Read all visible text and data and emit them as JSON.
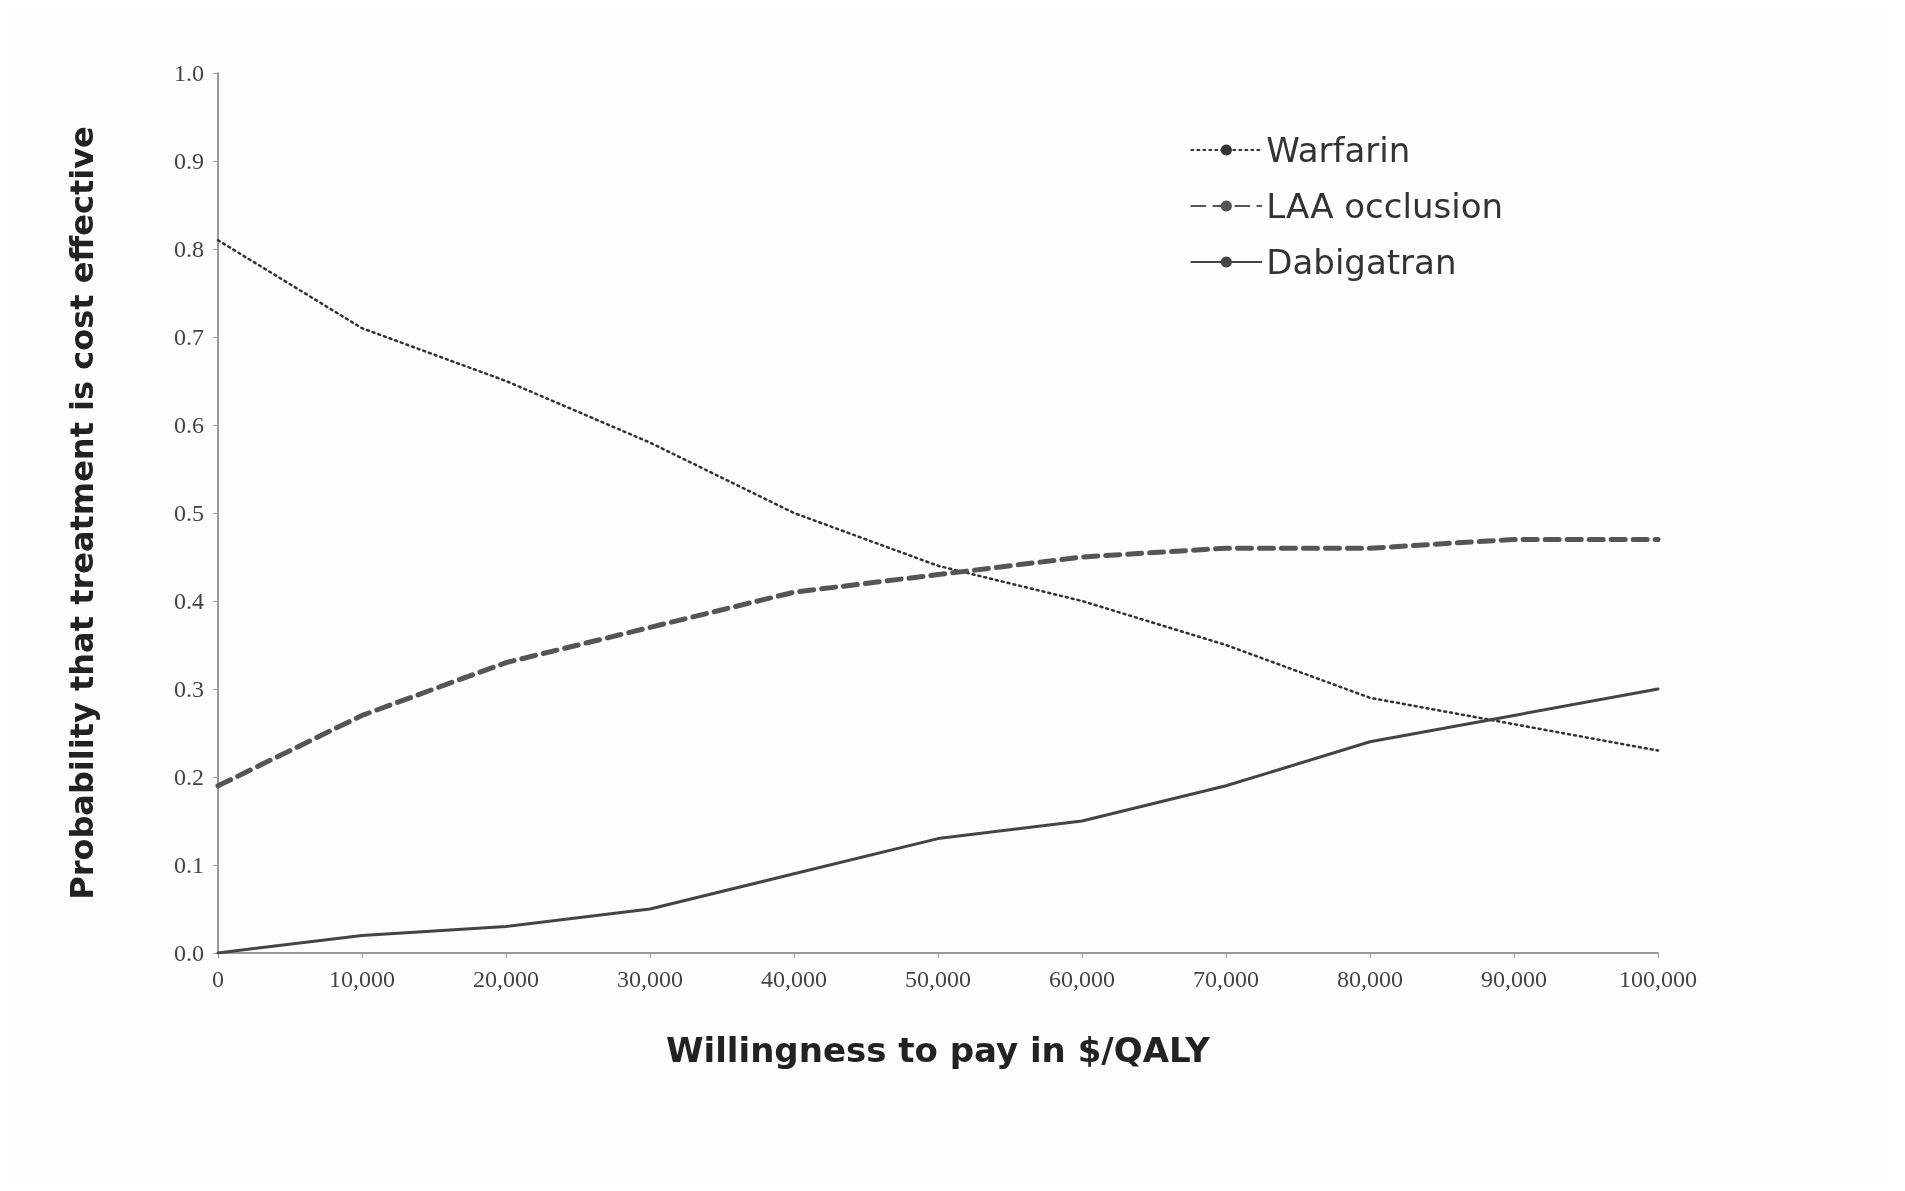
{
  "chart_data": {
    "type": "line",
    "xlabel": "Willingness to pay in $/QALY",
    "ylabel": "Probability that treatment is cost effective",
    "x": [
      0,
      10000,
      20000,
      30000,
      40000,
      50000,
      60000,
      70000,
      80000,
      90000,
      100000
    ],
    "series": [
      {
        "name": "Warfarin",
        "color": "#333333",
        "line_style": "dotted",
        "values": [
          0.81,
          0.71,
          0.65,
          0.58,
          0.5,
          0.44,
          0.4,
          0.35,
          0.29,
          0.26,
          0.23
        ]
      },
      {
        "name": "LAA occlusion",
        "color": "#555555",
        "line_style": "dashed",
        "values": [
          0.19,
          0.27,
          0.33,
          0.37,
          0.41,
          0.43,
          0.45,
          0.46,
          0.46,
          0.47,
          0.47
        ]
      },
      {
        "name": "Dabigatran",
        "color": "#444444",
        "line_style": "solid",
        "values": [
          0,
          0.02,
          0.03,
          0.05,
          0.09,
          0.13,
          0.15,
          0.19,
          0.24,
          0.27,
          0.3
        ]
      }
    ],
    "xlim": [
      0,
      100000
    ],
    "xticks": [
      0,
      {
        "value": 10000,
        "label": "10,000"
      },
      {
        "value": 20000,
        "label": "20,000"
      },
      {
        "value": 30000,
        "label": "30,000"
      },
      {
        "value": 40000,
        "label": "40,000"
      },
      {
        "value": 50000,
        "label": "50,000"
      },
      {
        "value": 60000,
        "label": "60,000"
      },
      {
        "value": 70000,
        "label": "70,000"
      },
      {
        "value": 80000,
        "label": "80,000"
      },
      {
        "value": 90000,
        "label": "90,000"
      },
      {
        "value": 100000,
        "label": "100,000"
      }
    ],
    "ylim": [
      0,
      1
    ],
    "yticks": [
      {
        "value": 0,
        "label": "0.0"
      },
      0.1,
      0.2,
      0.3,
      0.4,
      0.5,
      0.6,
      0.7,
      0.8,
      0.9,
      {
        "value": 1,
        "label": "1.0"
      }
    ],
    "grid": false,
    "legend": "top right",
    "marker": "none"
  }
}
